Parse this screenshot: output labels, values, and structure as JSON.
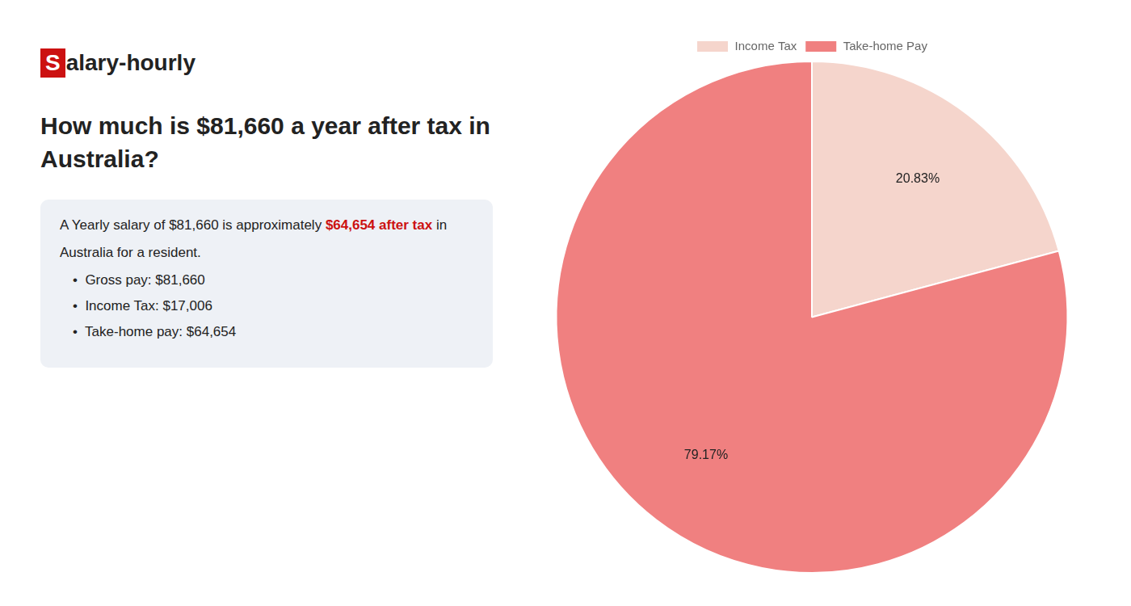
{
  "chart_data": {
    "type": "pie",
    "title": [
      "How much is $81,660 a year after tax in",
      "Australia?"
    ],
    "annotations": [
      "S",
      "alary-hourly",
      "A Yearly salary of $81,660 is approximately ",
      "$64,654 after tax",
      " in",
      "Australia for a resident.",
      "•  Gross pay: $81,660",
      "•  Income Tax: $17,006",
      "•  Take-home pay: $64,654"
    ],
    "categories": [
      "Income Tax",
      "Take-home Pay"
    ],
    "values": [
      20.83,
      79.17
    ],
    "value_labels": [
      "20.83%",
      "79.17%"
    ],
    "colors": [
      "#f5d5cc",
      "#f08080"
    ],
    "data_labels": true,
    "legend": "top"
  }
}
